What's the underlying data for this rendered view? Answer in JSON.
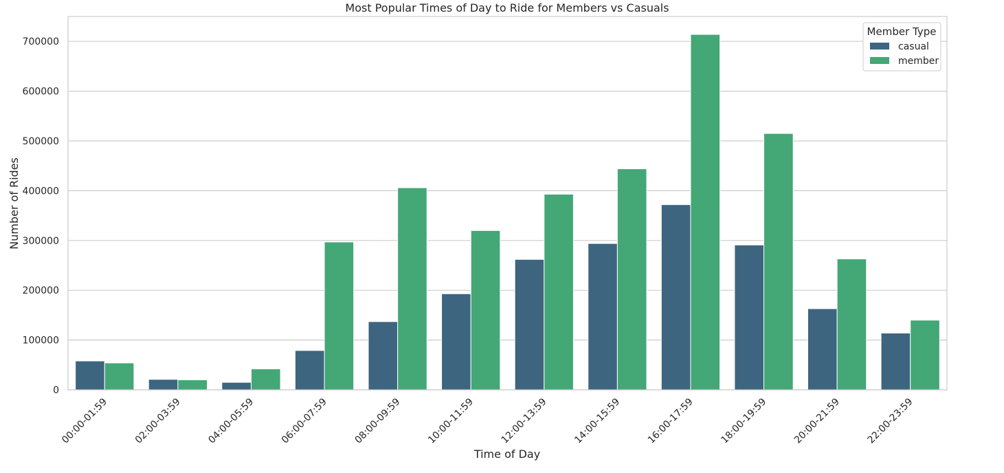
{
  "chart_data": {
    "type": "bar",
    "title": "Most Popular Times of Day to Ride for Members vs Casuals",
    "xlabel": "Time of Day",
    "ylabel": "Number of Rides",
    "ylim": [
      0,
      750000
    ],
    "yticks": [
      0,
      100000,
      200000,
      300000,
      400000,
      500000,
      600000,
      700000
    ],
    "grid": true,
    "legend": {
      "title": "Member Type",
      "placement": "top-right"
    },
    "categories": [
      "00:00-01:59",
      "02:00-03:59",
      "04:00-05:59",
      "06:00-07:59",
      "08:00-09:59",
      "10:00-11:59",
      "12:00-13:59",
      "14:00-15:59",
      "16:00-17:59",
      "18:00-19:59",
      "20:00-21:59",
      "22:00-23:59"
    ],
    "series": [
      {
        "name": "casual",
        "color": "#3d6580",
        "values": [
          58000,
          21000,
          15000,
          79000,
          137000,
          193000,
          262000,
          294000,
          372000,
          291000,
          163000,
          114000
        ]
      },
      {
        "name": "member",
        "color": "#44a776",
        "values": [
          54000,
          20000,
          42000,
          297000,
          406000,
          320000,
          393000,
          444000,
          714000,
          515000,
          263000,
          140000
        ]
      }
    ]
  }
}
